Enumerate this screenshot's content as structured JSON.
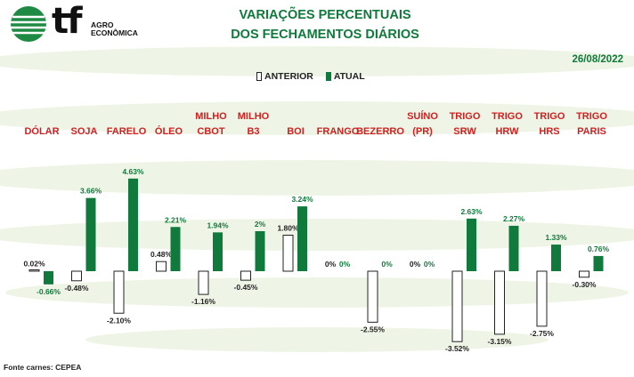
{
  "header": {
    "logo_mark": "tf",
    "logo_line1": "AGRO",
    "logo_line2": "ECONÔMICA",
    "title_line1": "VARIAÇÕES PERCENTUAIS",
    "title_line2": "DOS FECHAMENTOS DIÁRIOS",
    "date": "26/08/2022"
  },
  "legend": {
    "previous": "ANTERIOR",
    "current": "ATUAL"
  },
  "footer": {
    "source": "Fonte carnes: CEPEA"
  },
  "colors": {
    "current": "#0f7a3c",
    "previous": "#ffffff",
    "label_red": "#d11f1f",
    "text_green": "#0f7a3c",
    "background_stripe": "#e9f1dd"
  },
  "chart_data": {
    "type": "bar",
    "categories": [
      [
        "DÓLAR"
      ],
      [
        "SOJA"
      ],
      [
        "FARELO"
      ],
      [
        "ÓLEO"
      ],
      [
        "MILHO",
        "CBOT"
      ],
      [
        "MILHO",
        "B3"
      ],
      [
        "BOI"
      ],
      [
        "FRANGO"
      ],
      [
        "BEZERRO"
      ],
      [
        "SUÍNO",
        "(PR)"
      ],
      [
        "TRIGO",
        "SRW"
      ],
      [
        "TRIGO",
        "HRW"
      ],
      [
        "TRIGO",
        "HRS"
      ],
      [
        "TRIGO",
        "PARIS"
      ]
    ],
    "series": [
      {
        "name": "ANTERIOR",
        "values": [
          0.02,
          -0.48,
          -2.1,
          0.48,
          -1.16,
          -0.45,
          1.8,
          0,
          -2.55,
          0,
          -3.52,
          -3.15,
          -2.75,
          -0.3
        ],
        "labels": [
          "0.02%",
          "-0.48%",
          "-2.10%",
          "0.48%",
          "-1.16%",
          "-0.45%",
          "1.80%",
          "0%",
          "-2.55%",
          "0%",
          "-3.52%",
          "-3.15%",
          "-2.75%",
          "-0.30%"
        ]
      },
      {
        "name": "ATUAL",
        "values": [
          -0.66,
          3.66,
          4.63,
          2.21,
          1.94,
          2.0,
          3.24,
          0,
          0,
          0,
          2.63,
          2.27,
          1.33,
          0.76
        ],
        "labels": [
          "-0.66%",
          "3.66%",
          "4.63%",
          "2.21%",
          "1.94%",
          "2%",
          "3.24%",
          "0%",
          "0%",
          "0%",
          "2.63%",
          "2.27%",
          "1.33%",
          "0.76%"
        ]
      }
    ],
    "ylim": [
      -3.6,
      4.7
    ],
    "legend_position": "top-center",
    "grid": false
  }
}
